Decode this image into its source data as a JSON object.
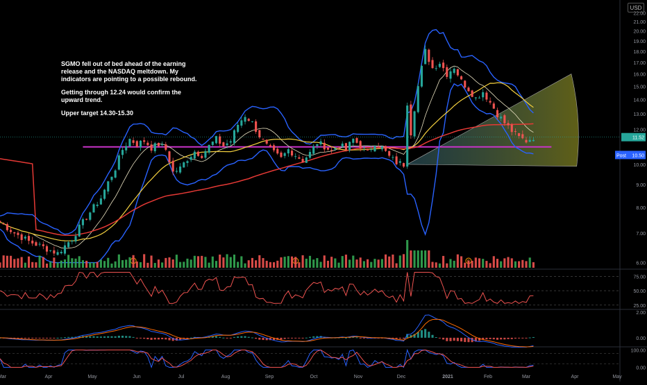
{
  "annotation": {
    "line1": "SGMO fell out of bed ahead of the earning release and the NASDAQ meltdown. My indicators are pointing to a possible rebound.",
    "line2": "Getting through 12.24 would confirm the upward trend.",
    "line3": "Upper target 14.30-15.30"
  },
  "currency_button": "USD",
  "price_tags": {
    "last": "11.52",
    "post_label": "Post",
    "post_value": "10.50"
  },
  "chart_data": [
    {
      "type": "candlestick",
      "panel": "price",
      "y_scale": "log",
      "ylim": [
        5.8,
        23.5
      ],
      "y_ticks": [
        "22.00",
        "21.00",
        "20.00",
        "19.00",
        "18.00",
        "17.00",
        "16.00",
        "15.00",
        "14.00",
        "13.00",
        "12.00",
        "10.00",
        "9.00",
        "8.00",
        "7.00",
        "6.00"
      ],
      "x_ticks": [
        "Mar",
        "Apr",
        "May",
        "Jun",
        "Jul",
        "Aug",
        "Sep",
        "Oct",
        "Nov",
        "Dec",
        "2021",
        "Feb",
        "Mar",
        "Apr",
        "May"
      ],
      "close_points": [
        [
          0,
          7.4
        ],
        [
          4,
          7.0
        ],
        [
          8,
          6.7
        ],
        [
          12,
          6.5
        ],
        [
          16,
          6.3
        ],
        [
          20,
          6.8
        ],
        [
          24,
          7.6
        ],
        [
          28,
          8.4
        ],
        [
          32,
          9.8
        ],
        [
          34,
          10.8
        ],
        [
          36,
          11.4
        ],
        [
          38,
          11.1
        ],
        [
          40,
          11.3
        ],
        [
          42,
          10.9
        ],
        [
          44,
          11.1
        ],
        [
          46,
          10.8
        ],
        [
          48,
          9.6
        ],
        [
          50,
          9.8
        ],
        [
          52,
          10.3
        ],
        [
          54,
          10.7
        ],
        [
          56,
          10.5
        ],
        [
          58,
          11.0
        ],
        [
          60,
          11.4
        ],
        [
          62,
          11.0
        ],
        [
          64,
          11.3
        ],
        [
          66,
          12.3
        ],
        [
          68,
          12.9
        ],
        [
          70,
          12.4
        ],
        [
          72,
          11.6
        ],
        [
          74,
          11.0
        ],
        [
          76,
          10.6
        ],
        [
          78,
          10.3
        ],
        [
          80,
          10.8
        ],
        [
          82,
          10.5
        ],
        [
          84,
          10.2
        ],
        [
          86,
          10.6
        ],
        [
          88,
          11.2
        ],
        [
          90,
          11.0
        ],
        [
          92,
          10.7
        ],
        [
          94,
          11.1
        ],
        [
          96,
          10.8
        ],
        [
          98,
          11.4
        ],
        [
          100,
          11.0
        ],
        [
          102,
          10.6
        ],
        [
          104,
          11.2
        ],
        [
          106,
          10.9
        ],
        [
          108,
          10.4
        ],
        [
          110,
          10.1
        ],
        [
          112,
          10.0
        ],
        [
          113,
          13.8
        ],
        [
          114,
          11.8
        ],
        [
          116,
          15.0
        ],
        [
          118,
          18.0
        ],
        [
          120,
          16.5
        ],
        [
          122,
          17.0
        ],
        [
          124,
          16.0
        ],
        [
          126,
          16.6
        ],
        [
          128,
          15.4
        ],
        [
          130,
          14.8
        ],
        [
          132,
          14.1
        ],
        [
          134,
          14.6
        ],
        [
          136,
          13.8
        ],
        [
          138,
          13.0
        ],
        [
          140,
          12.4
        ],
        [
          142,
          11.9
        ],
        [
          144,
          11.5
        ],
        [
          146,
          11.3
        ],
        [
          148,
          11.52
        ]
      ],
      "horizontal_level": 10.95,
      "projection_fan": {
        "start": [
          113,
          10.0
        ],
        "end_x": 160,
        "upper": 16.0,
        "lower": 9.9
      },
      "overlays": [
        "Bollinger Bands",
        "Moving averages"
      ]
    },
    {
      "type": "bar",
      "panel": "volume",
      "y_ticks": []
    },
    {
      "type": "line",
      "panel": "oscillator",
      "y_ticks": [
        "75.00",
        "50.00",
        "25.00"
      ],
      "ylim": [
        20,
        85
      ]
    },
    {
      "type": "histogram",
      "panel": "macd",
      "y_ticks": [
        "2.00",
        "0.00"
      ],
      "ylim": [
        -0.6,
        2.1
      ]
    },
    {
      "type": "line",
      "panel": "stochastic",
      "y_ticks": [
        "100.00",
        "0.00"
      ],
      "ylim": [
        -10,
        110
      ]
    }
  ],
  "colors": {
    "up": "#26a69a",
    "down": "#ef5350",
    "volume_up": "#34a853",
    "band": "#2962ff",
    "ma_short": "#f4d03f",
    "ma_long": "#e53935",
    "level": "#c833c8",
    "fan": "#7f7f1f"
  }
}
